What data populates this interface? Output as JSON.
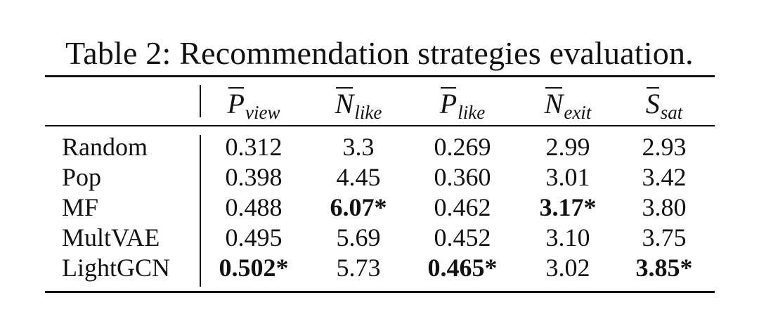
{
  "caption": "Table 2: Recommendation strategies evaluation.",
  "columns": [
    {
      "symbol": "P",
      "subscript": "view"
    },
    {
      "symbol": "N",
      "subscript": "like"
    },
    {
      "symbol": "P",
      "subscript": "like"
    },
    {
      "symbol": "N",
      "subscript": "exit"
    },
    {
      "symbol": "S",
      "subscript": "sat"
    }
  ],
  "rows": [
    {
      "label": "Random",
      "values": [
        "0.312",
        "3.3",
        "0.269",
        "2.99",
        "2.93"
      ],
      "bold": [
        false,
        false,
        false,
        false,
        false
      ]
    },
    {
      "label": "Pop",
      "values": [
        "0.398",
        "4.45",
        "0.360",
        "3.01",
        "3.42"
      ],
      "bold": [
        false,
        false,
        false,
        false,
        false
      ]
    },
    {
      "label": "MF",
      "values": [
        "0.488",
        "6.07*",
        "0.462",
        "3.17*",
        "3.80"
      ],
      "bold": [
        false,
        true,
        false,
        true,
        false
      ]
    },
    {
      "label": "MultVAE",
      "values": [
        "0.495",
        "5.69",
        "0.452",
        "3.10",
        "3.75"
      ],
      "bold": [
        false,
        false,
        false,
        false,
        false
      ]
    },
    {
      "label": "LightGCN",
      "values": [
        "0.502*",
        "5.73",
        "0.465*",
        "3.02",
        "3.85*"
      ],
      "bold": [
        true,
        false,
        true,
        false,
        true
      ]
    }
  ]
}
